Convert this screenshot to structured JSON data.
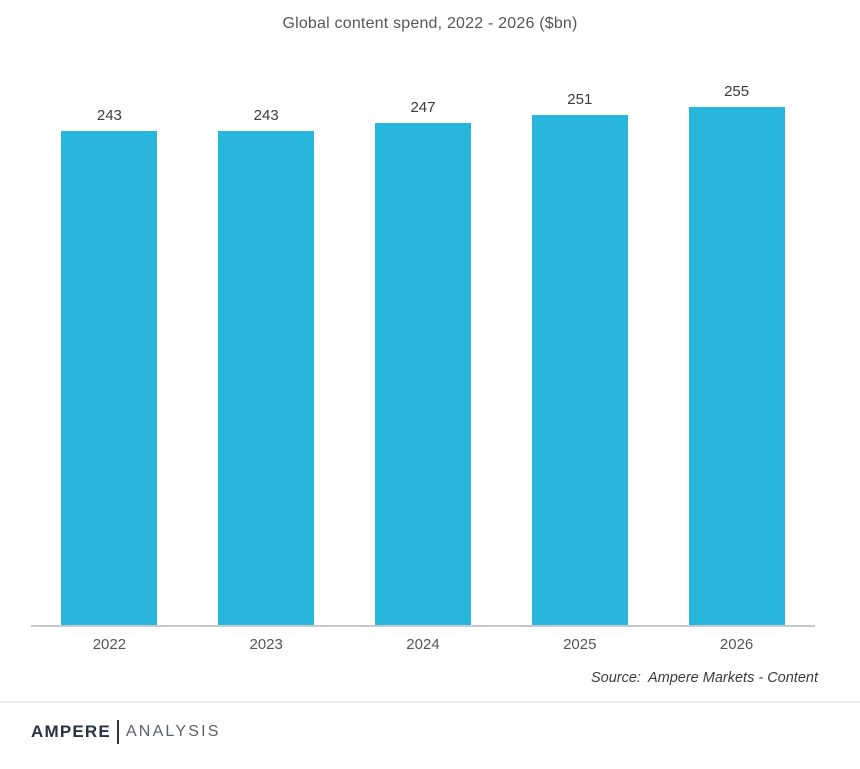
{
  "chart_data": {
    "type": "bar",
    "categories": [
      "2022",
      "2023",
      "2024",
      "2025",
      "2026"
    ],
    "values": [
      243,
      243,
      247,
      251,
      255
    ],
    "title": "Global content spend, 2022 - 2026 ($bn)",
    "xlabel": "",
    "ylabel": "",
    "ylim": [
      0,
      278
    ],
    "grid": false,
    "legend": false,
    "data_labels": true,
    "bar_color": "#29B6DC"
  },
  "source": {
    "label": "Source:",
    "text": "Ampere Markets - Content"
  },
  "footer": {
    "brand_primary": "AMPERE",
    "brand_secondary": "ANALYSIS"
  },
  "colors": {
    "bar": "#29B6DC",
    "title_text": "#575757",
    "value_label_text": "#3B3B3B",
    "axis_label_text": "#565656",
    "axis_line": "#C6CACD",
    "source_text": "#3D3D3D",
    "divider": "#EBEBEB",
    "brand_navy": "#2A3142",
    "brand_gray": "#5B606C"
  }
}
